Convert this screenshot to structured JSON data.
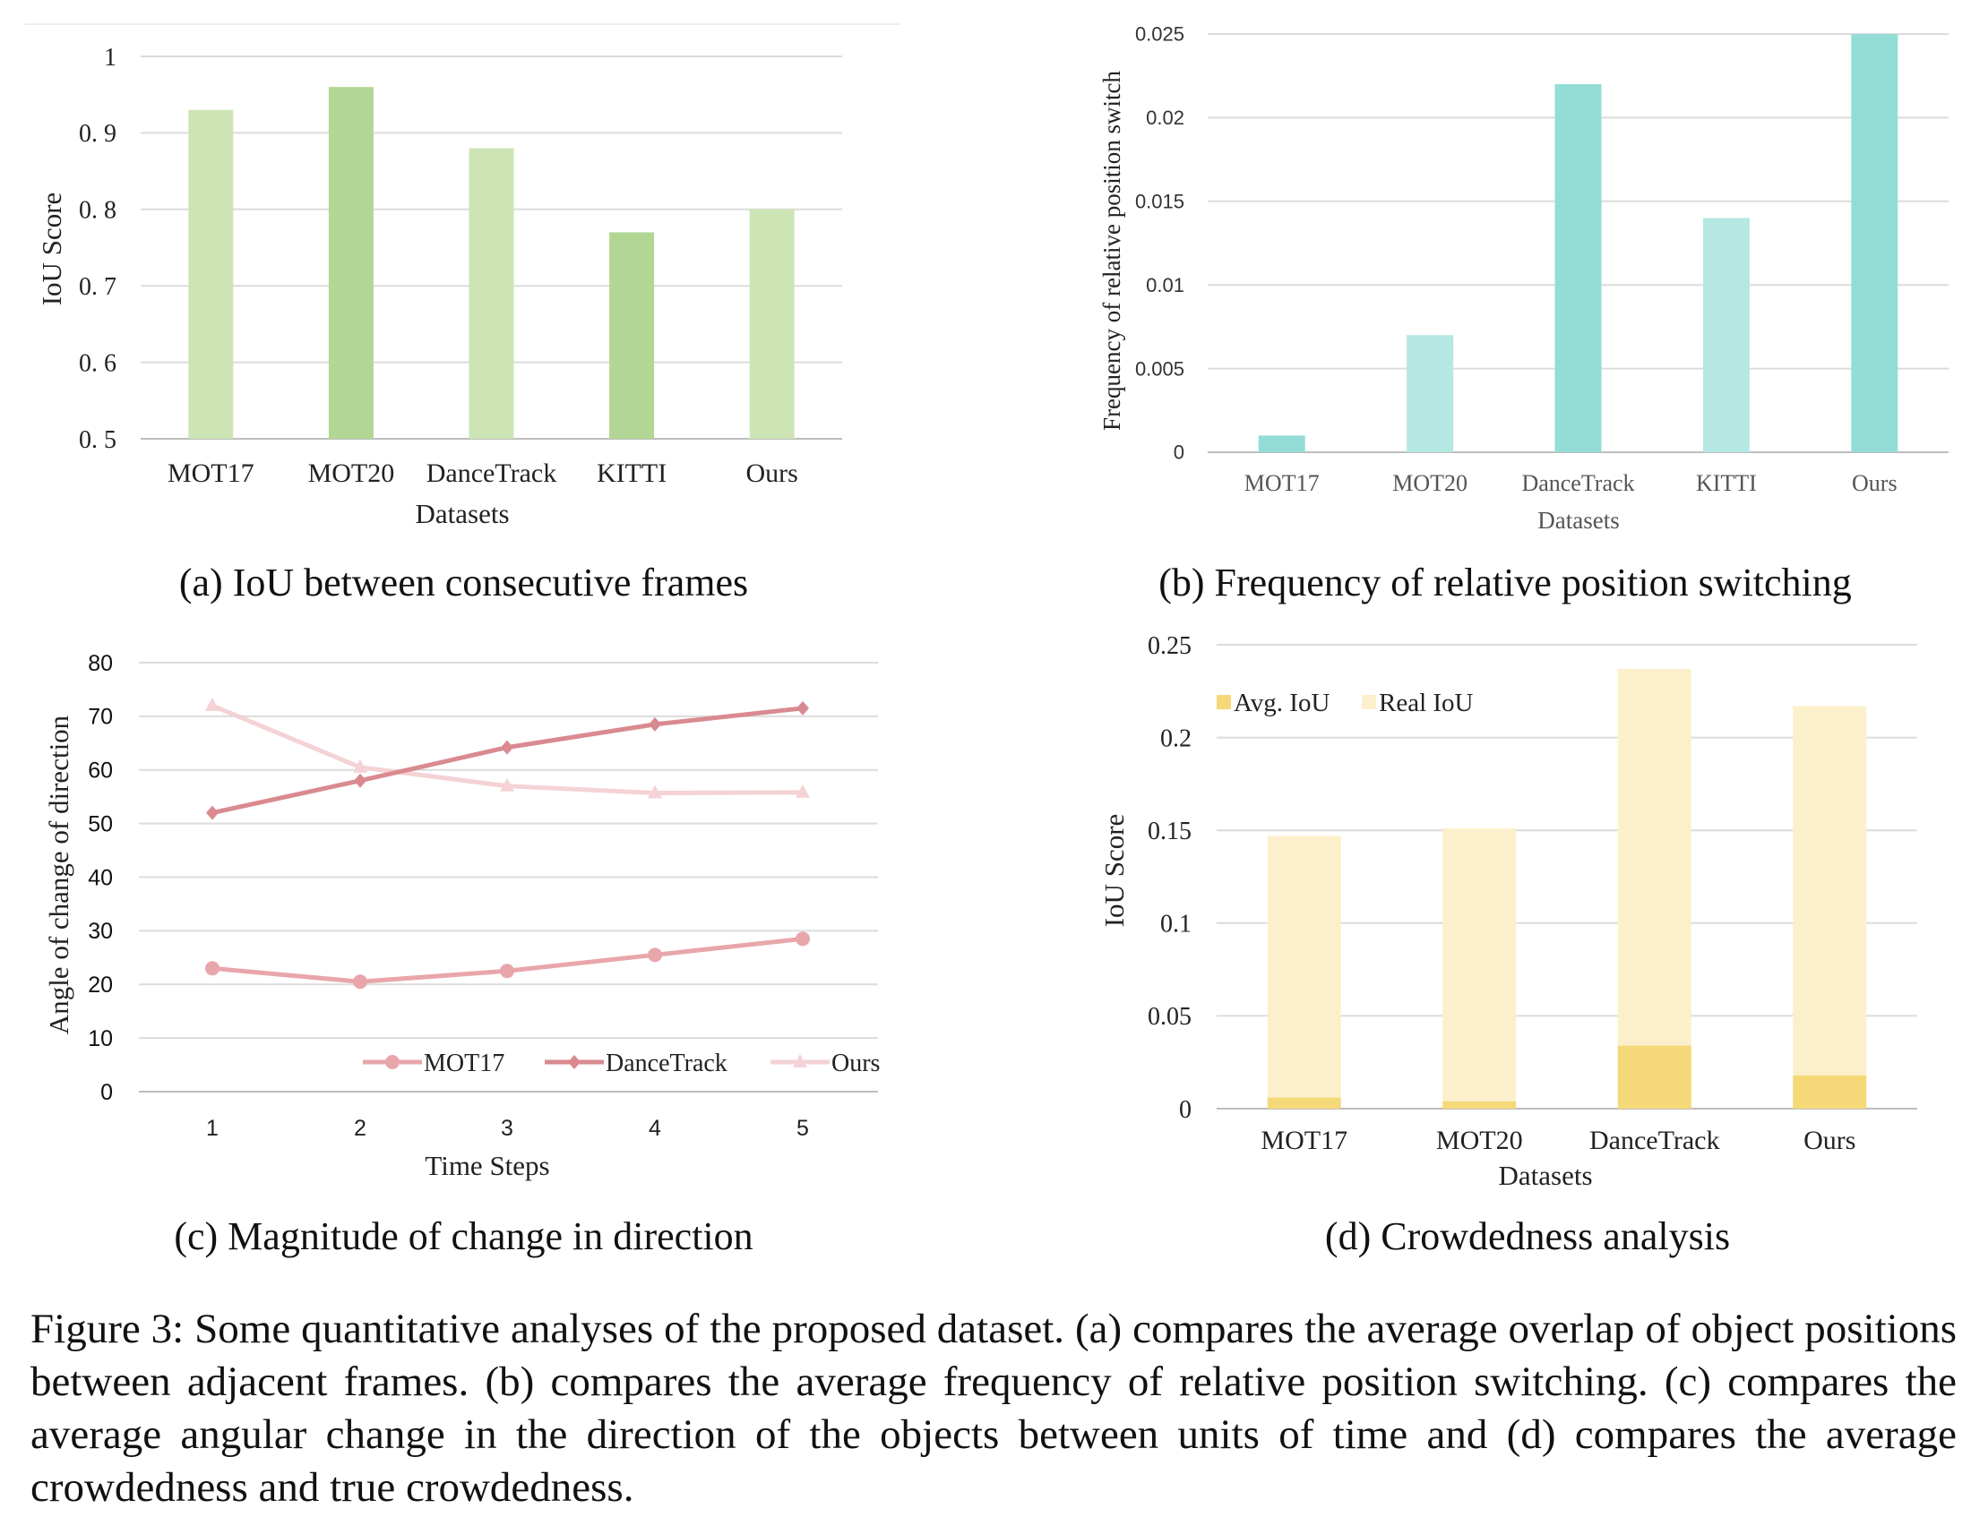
{
  "panels": {
    "a": {
      "caption": "(a) IoU between consecutive frames",
      "chart_data": {
        "type": "bar",
        "categories": [
          "MOT17",
          "MOT20",
          "DanceTrack",
          "KITTI",
          "Ours"
        ],
        "values": [
          0.93,
          0.96,
          0.88,
          0.77,
          0.8
        ],
        "bar_colors": [
          "#cde5b5",
          "#b2d794",
          "#cde5b5",
          "#b2d794",
          "#cde5b5"
        ],
        "xlabel": "Datasets",
        "ylabel": "IoU Score",
        "ylim": [
          0.5,
          1.0
        ],
        "yticks": [
          "0. 5",
          "0. 6",
          "0. 7",
          "0. 8",
          "0. 9",
          "1"
        ],
        "grid": true
      }
    },
    "b": {
      "caption": "(b) Frequency of relative position switching",
      "chart_data": {
        "type": "bar",
        "categories": [
          "MOT17",
          "MOT20",
          "DanceTrack",
          "KITTI",
          "Ours"
        ],
        "values": [
          0.001,
          0.007,
          0.022,
          0.014,
          0.025
        ],
        "bar_colors": [
          "#93ddd6",
          "#b5e7e3",
          "#93ddd6",
          "#b5e7e3",
          "#93ddd6"
        ],
        "xlabel": "Datasets",
        "ylabel": "Frequency of relative position switch",
        "ylim": [
          0,
          0.025
        ],
        "yticks": [
          "0",
          "0.005",
          "0.01",
          "0.015",
          "0.02",
          "0.025"
        ],
        "grid": true
      }
    },
    "c": {
      "caption": "(c) Magnitude of change in direction",
      "chart_data": {
        "type": "line",
        "x": [
          1,
          2,
          3,
          4,
          5
        ],
        "xticks": [
          "1",
          "2",
          "3",
          "4",
          "5"
        ],
        "series": [
          {
            "name": "MOT17",
            "values": [
              23,
              20.5,
              22.5,
              25.5,
              28.5
            ],
            "color": "#e8a6ab",
            "marker": "circle"
          },
          {
            "name": "DanceTrack",
            "values": [
              52,
              58,
              64.2,
              68.5,
              71.5
            ],
            "color": "#d98a90",
            "marker": "diamond"
          },
          {
            "name": "Ours",
            "values": [
              72,
              60.5,
              57,
              55.7,
              55.8
            ],
            "color": "#f5d2d5",
            "marker": "triangle"
          }
        ],
        "xlabel": "Time Steps",
        "ylabel": "Angle of change of direction",
        "ylim": [
          0,
          80
        ],
        "yticks": [
          "0",
          "10",
          "20",
          "30",
          "40",
          "50",
          "60",
          "70",
          "80"
        ],
        "legend": "bottom-right",
        "grid": true
      }
    },
    "d": {
      "caption": "(d) Crowdedness analysis",
      "chart_data": {
        "type": "bar",
        "stacked": true,
        "categories": [
          "MOT17",
          "MOT20",
          "DanceTrack",
          "Ours"
        ],
        "series": [
          {
            "name": "Avg. IoU",
            "values": [
              0.006,
              0.004,
              0.034,
              0.018
            ],
            "color": "#f5d978"
          },
          {
            "name": "Real IoU",
            "values": [
              0.141,
              0.147,
              0.203,
              0.199
            ],
            "color": "#fcf0cc"
          }
        ],
        "xlabel": "Datasets",
        "ylabel": "IoU Score",
        "ylim": [
          0,
          0.25
        ],
        "yticks": [
          "0",
          "0.05",
          "0.1",
          "0.15",
          "0.2",
          "0.25"
        ],
        "legend": "top-left",
        "grid": true
      }
    }
  },
  "figure_caption": "Figure 3: Some quantitative analyses of the proposed dataset. (a) compares the average overlap of object positions between adjacent frames. (b) compares the average frequency of relative position switching. (c) compares the average angular change in the direction of the objects between units of time and (d) compares the average crowdedness and true crowdedness."
}
